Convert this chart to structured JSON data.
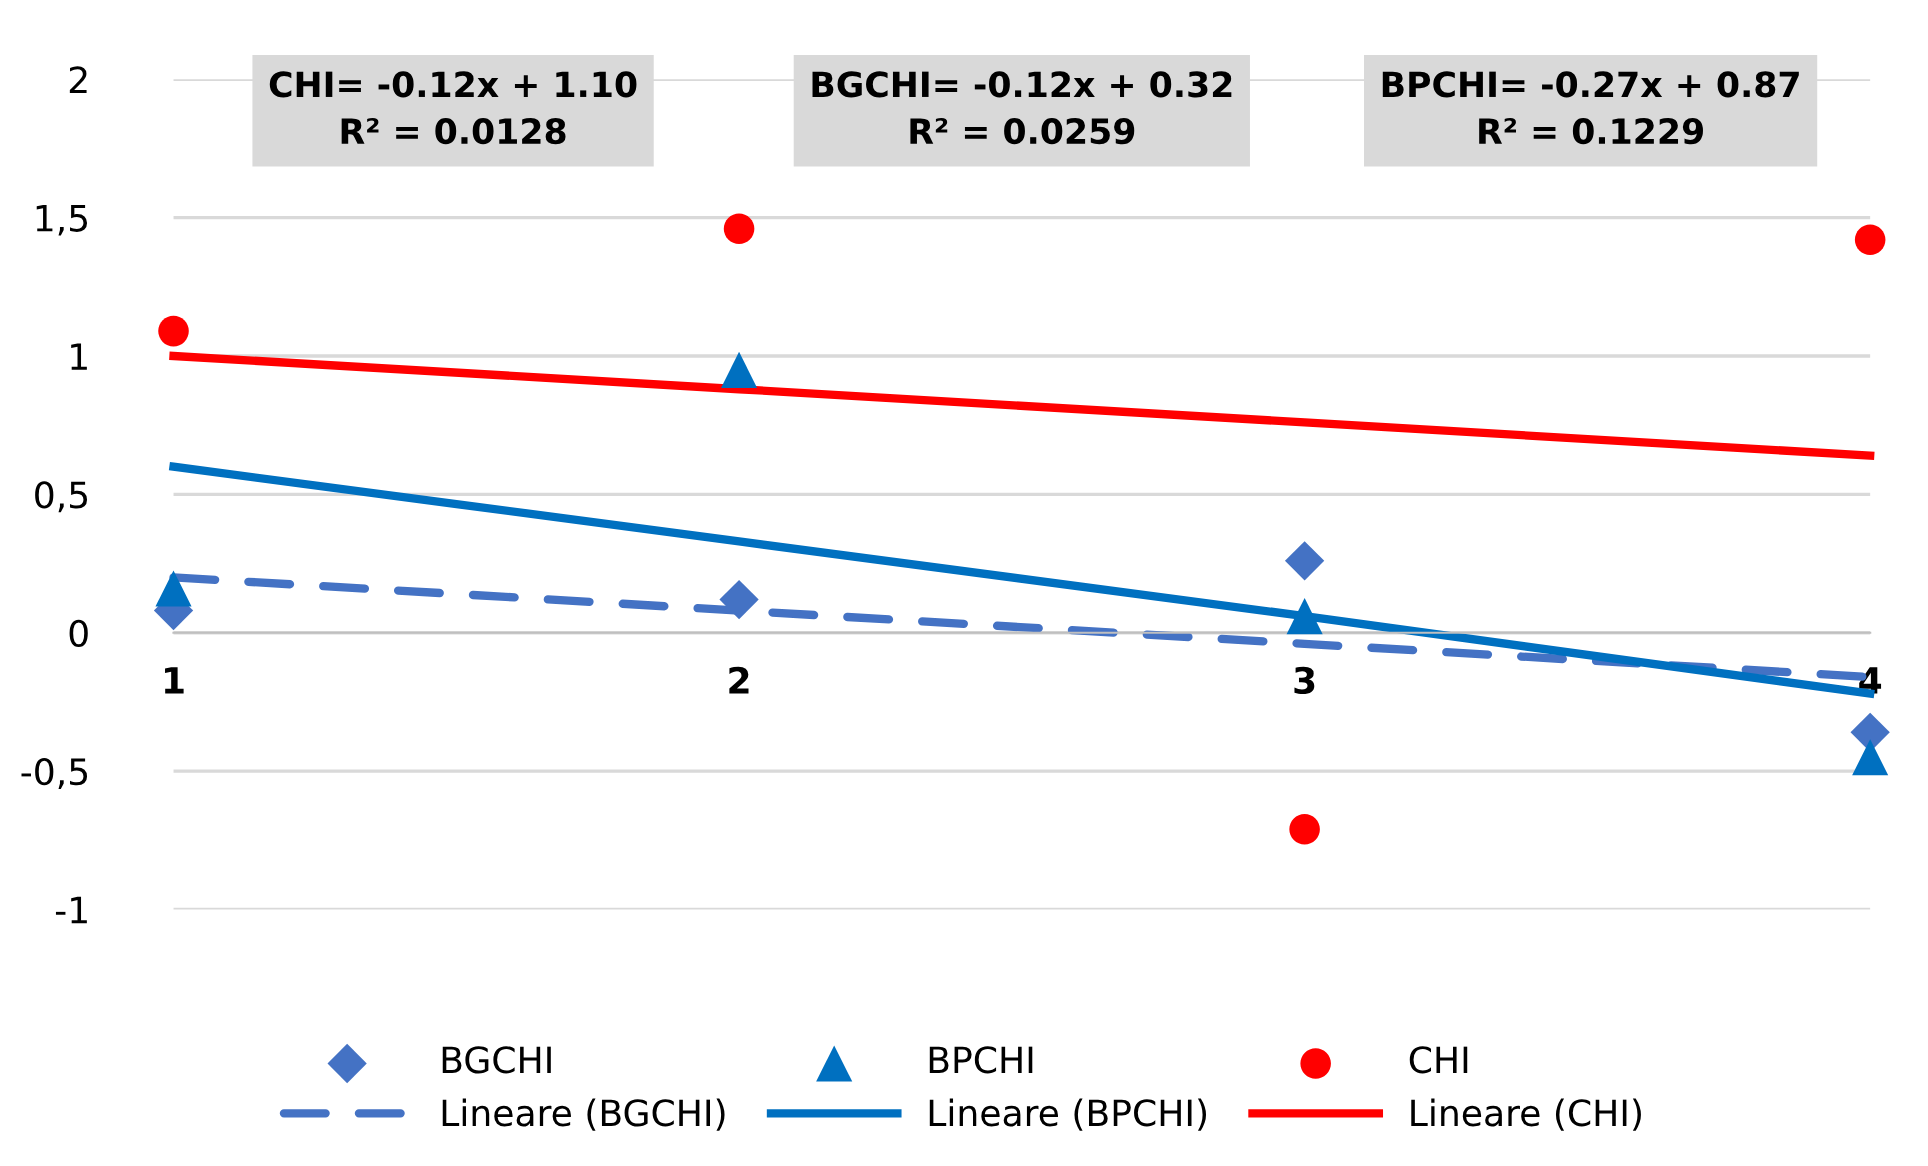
{
  "chart_data": {
    "type": "scatter",
    "x": [
      1,
      2,
      3,
      4
    ],
    "xlim": [
      1,
      4
    ],
    "xticks": [
      1,
      2,
      3,
      4
    ],
    "ylim": [
      -1,
      2
    ],
    "yticks": [
      {
        "value": -1,
        "label": "-1"
      },
      {
        "value": -0.5,
        "label": "-0,5"
      },
      {
        "value": 0,
        "label": "0"
      },
      {
        "value": 0.5,
        "label": "0,5"
      },
      {
        "value": 1,
        "label": "1"
      },
      {
        "value": 1.5,
        "label": "1,5"
      },
      {
        "value": 2,
        "label": "2"
      }
    ],
    "grid": "y",
    "legend": "bottom",
    "series": [
      {
        "name": "BGCHI",
        "marker": "diamond",
        "color": "#4472c4",
        "values": [
          0.08,
          0.12,
          0.26,
          -0.36
        ]
      },
      {
        "name": "BPCHI",
        "marker": "triangle",
        "color": "#0070c0",
        "values": [
          0.16,
          0.95,
          0.06,
          -0.45
        ]
      },
      {
        "name": "CHI",
        "marker": "circle",
        "color": "#ff0000",
        "values": [
          1.09,
          1.46,
          -0.71,
          1.42
        ]
      },
      {
        "name": "Lineare (BGCHI)",
        "type": "line",
        "line_style": "dashed",
        "marker": "none",
        "color": "#4472c4",
        "values": [
          0.2,
          0.08,
          -0.04,
          -0.16
        ]
      },
      {
        "name": "Lineare (BPCHI)",
        "type": "line",
        "line_style": "solid",
        "marker": "none",
        "color": "#0070c0",
        "values": [
          0.6,
          0.33,
          0.06,
          -0.22
        ]
      },
      {
        "name": "Lineare (CHI)",
        "type": "line",
        "line_style": "solid",
        "marker": "none",
        "color": "#ff0000",
        "values": [
          1.0,
          0.88,
          0.76,
          0.64
        ]
      }
    ],
    "annotations": [
      "CHI= -0.12x + 1.10\nR² = 0.0128",
      "BGCHI= -0.12x + 0.32\nR² = 0.0259",
      "BPCHI= -0.27x + 0.87\nR² = 0.1229"
    ]
  }
}
